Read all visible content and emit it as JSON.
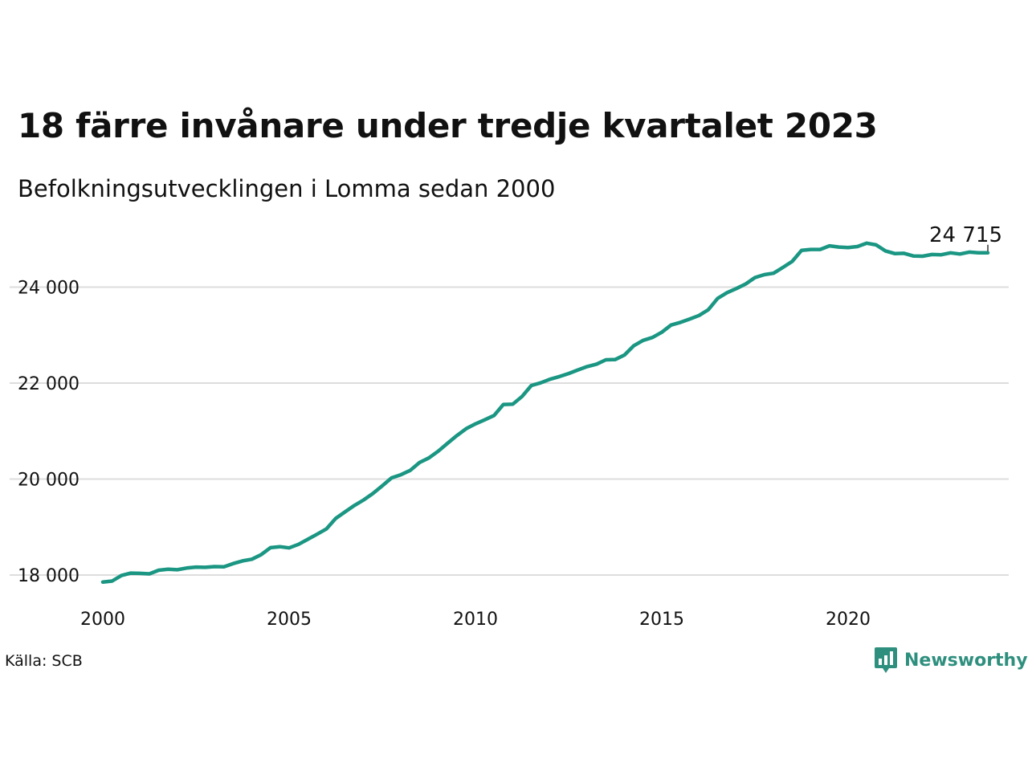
{
  "title": "18 färre invånare under tredje kvartalet 2023",
  "subtitle": "Befolkningsutvecklingen i Lomma sedan 2000",
  "source": "Källa: SCB",
  "brand": {
    "name": "Newsworthy",
    "color": "#2f8f7e",
    "icon": "newsworthy-logo-icon"
  },
  "colors": {
    "line": "#1a9683",
    "grid": "#dddddd",
    "text": "#111111"
  },
  "chart_data": {
    "type": "line",
    "title": "",
    "xlabel": "",
    "ylabel": "",
    "xlim": [
      2000,
      2024.5
    ],
    "ylim": [
      17800,
      25300
    ],
    "grid": true,
    "xticks": [
      2000,
      2005,
      2010,
      2015,
      2020
    ],
    "xtick_labels": [
      "2000",
      "2005",
      "2010",
      "2015",
      "2020"
    ],
    "yticks": [
      18000,
      20000,
      22000,
      24000
    ],
    "ytick_labels": [
      "18 000",
      "20 000",
      "22 000",
      "24 000"
    ],
    "end_label": "24 715",
    "series": [
      {
        "x": [
          2000.0,
          2000.25,
          2000.5,
          2000.75,
          2001.0,
          2001.25,
          2001.5,
          2001.75,
          2002.0,
          2002.25,
          2002.5,
          2002.75,
          2003.0,
          2003.25,
          2003.5,
          2003.75,
          2004.0,
          2004.25,
          2004.5,
          2004.75,
          2005.0,
          2005.25,
          2005.5,
          2005.75,
          2006.0,
          2006.25,
          2006.5,
          2006.75,
          2007.0,
          2007.25,
          2007.5,
          2007.75,
          2008.0,
          2008.25,
          2008.5,
          2008.75,
          2009.0,
          2009.25,
          2009.5,
          2009.75,
          2010.0,
          2010.25,
          2010.5,
          2010.75,
          2011.0,
          2011.25,
          2011.5,
          2011.75,
          2012.0,
          2012.25,
          2012.5,
          2012.75,
          2013.0,
          2013.25,
          2013.5,
          2013.75,
          2014.0,
          2014.25,
          2014.5,
          2014.75,
          2015.0,
          2015.25,
          2015.5,
          2015.75,
          2016.0,
          2016.25,
          2016.5,
          2016.75,
          2017.0,
          2017.25,
          2017.5,
          2017.75,
          2018.0,
          2018.25,
          2018.5,
          2018.75,
          2019.0,
          2019.25,
          2019.5,
          2019.75,
          2020.0,
          2020.25,
          2020.5,
          2020.75,
          2021.0,
          2021.25,
          2021.5,
          2021.75,
          2022.0,
          2022.25,
          2022.5,
          2022.75,
          2023.0,
          2023.25,
          2023.5,
          2023.75
        ],
        "values": [
          17855,
          17875,
          17990,
          18040,
          18035,
          18025,
          18100,
          18120,
          18110,
          18145,
          18165,
          18160,
          18175,
          18170,
          18240,
          18295,
          18330,
          18425,
          18570,
          18590,
          18565,
          18640,
          18745,
          18850,
          18960,
          19180,
          19315,
          19450,
          19565,
          19700,
          19860,
          20025,
          20090,
          20180,
          20345,
          20440,
          20580,
          20745,
          20905,
          21050,
          21150,
          21235,
          21325,
          21555,
          21560,
          21720,
          21950,
          22005,
          22080,
          22135,
          22200,
          22275,
          22345,
          22395,
          22485,
          22490,
          22585,
          22780,
          22890,
          22950,
          23060,
          23210,
          23265,
          23335,
          23410,
          23530,
          23765,
          23885,
          23970,
          24065,
          24200,
          24260,
          24290,
          24410,
          24535,
          24765,
          24785,
          24785,
          24860,
          24835,
          24825,
          24845,
          24915,
          24880,
          24755,
          24700,
          24705,
          24650,
          24645,
          24680,
          24675,
          24715,
          24690,
          24730,
          24715,
          24715
        ]
      }
    ]
  }
}
